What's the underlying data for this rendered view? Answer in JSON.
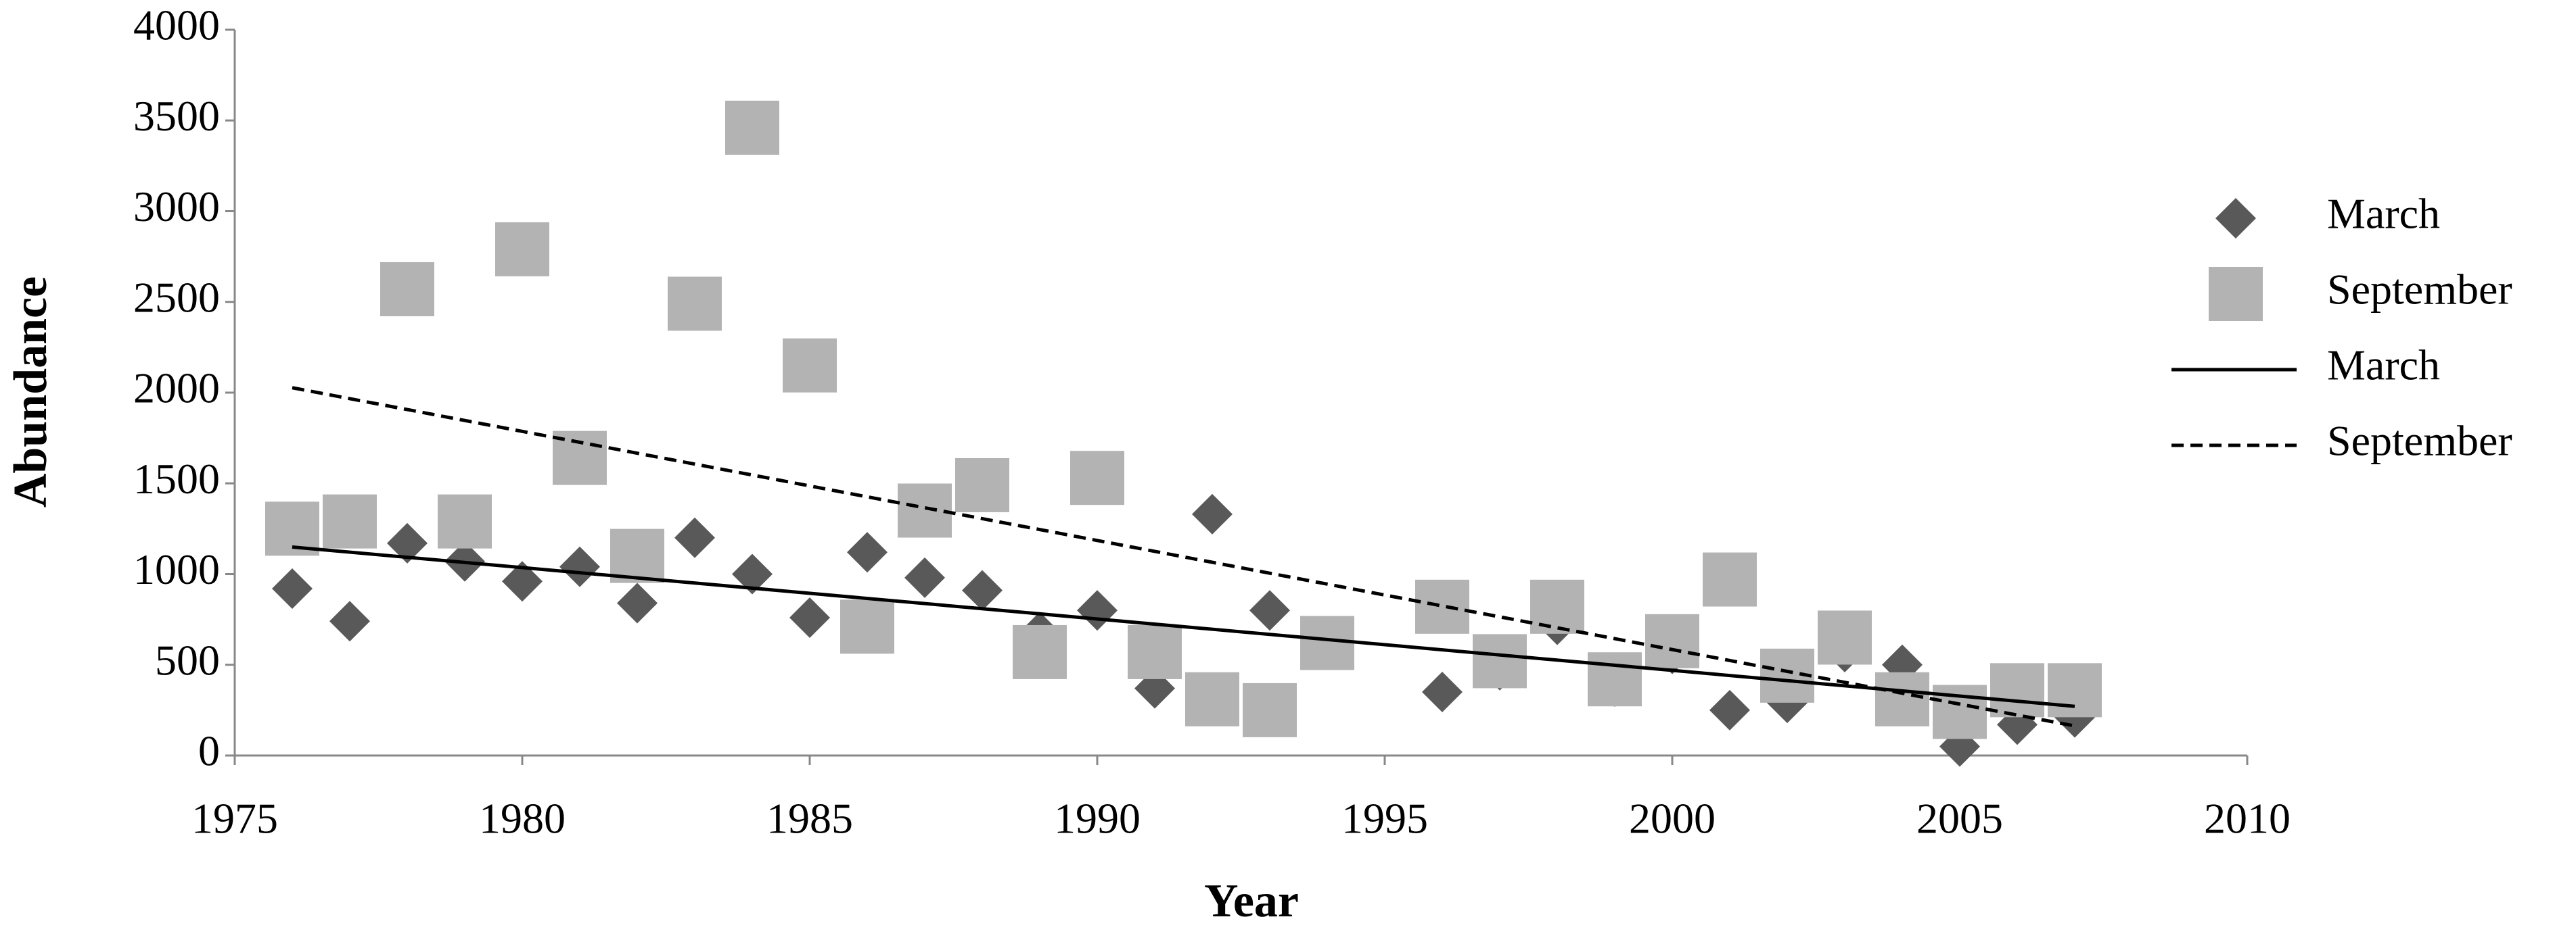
{
  "chart_data": {
    "type": "scatter",
    "x_label": "Year",
    "y_label": "Abundance",
    "xlim": [
      1975,
      2010
    ],
    "xticks": [
      1975,
      1980,
      1985,
      1990,
      1995,
      2000,
      2005,
      2010
    ],
    "ylim": [
      0,
      4000
    ],
    "yticks": [
      0,
      500,
      1000,
      1500,
      2000,
      2500,
      3000,
      3500,
      4000
    ],
    "grid": false,
    "legend": "right",
    "series": [
      {
        "name": "March",
        "kind": "marker",
        "marker": "diamond",
        "color": "#595959",
        "x": [
          1976,
          1977,
          1978,
          1979,
          1980,
          1981,
          1982,
          1983,
          1984,
          1985,
          1986,
          1987,
          1988,
          1989,
          1990,
          1991,
          1992,
          1993,
          1996,
          1997,
          1998,
          1999,
          2000,
          2001,
          2002,
          2003,
          2004,
          2005,
          2006,
          2007
        ],
        "values": [
          920,
          740,
          1170,
          1070,
          960,
          1040,
          840,
          1200,
          1000,
          760,
          1120,
          980,
          910,
          680,
          800,
          370,
          1330,
          800,
          350,
          470,
          720,
          380,
          560,
          250,
          290,
          570,
          500,
          50,
          170,
          210
        ]
      },
      {
        "name": "September",
        "kind": "marker",
        "marker": "square",
        "color": "#b3b3b3",
        "x": [
          1976,
          1977,
          1978,
          1979,
          1980,
          1981,
          1982,
          1983,
          1984,
          1985,
          1986,
          1987,
          1988,
          1989,
          1990,
          1991,
          1992,
          1993,
          1994,
          1996,
          1997,
          1998,
          1999,
          2000,
          2001,
          2002,
          2003,
          2004,
          2005,
          2006,
          2007
        ],
        "values": [
          1250,
          1290,
          2570,
          1290,
          2790,
          1640,
          1100,
          2490,
          3460,
          2150,
          710,
          1350,
          1490,
          570,
          1530,
          570,
          310,
          250,
          620,
          820,
          520,
          820,
          420,
          630,
          970,
          440,
          650,
          310,
          240,
          360,
          360
        ]
      },
      {
        "name": "March",
        "kind": "line",
        "dash": false,
        "color": "#000000",
        "x": [
          1976,
          2007
        ],
        "values": [
          1149,
          271
        ]
      },
      {
        "name": "September",
        "kind": "line",
        "dash": true,
        "color": "#000000",
        "x": [
          1976,
          2007
        ],
        "values": [
          2027,
          163
        ]
      }
    ]
  }
}
